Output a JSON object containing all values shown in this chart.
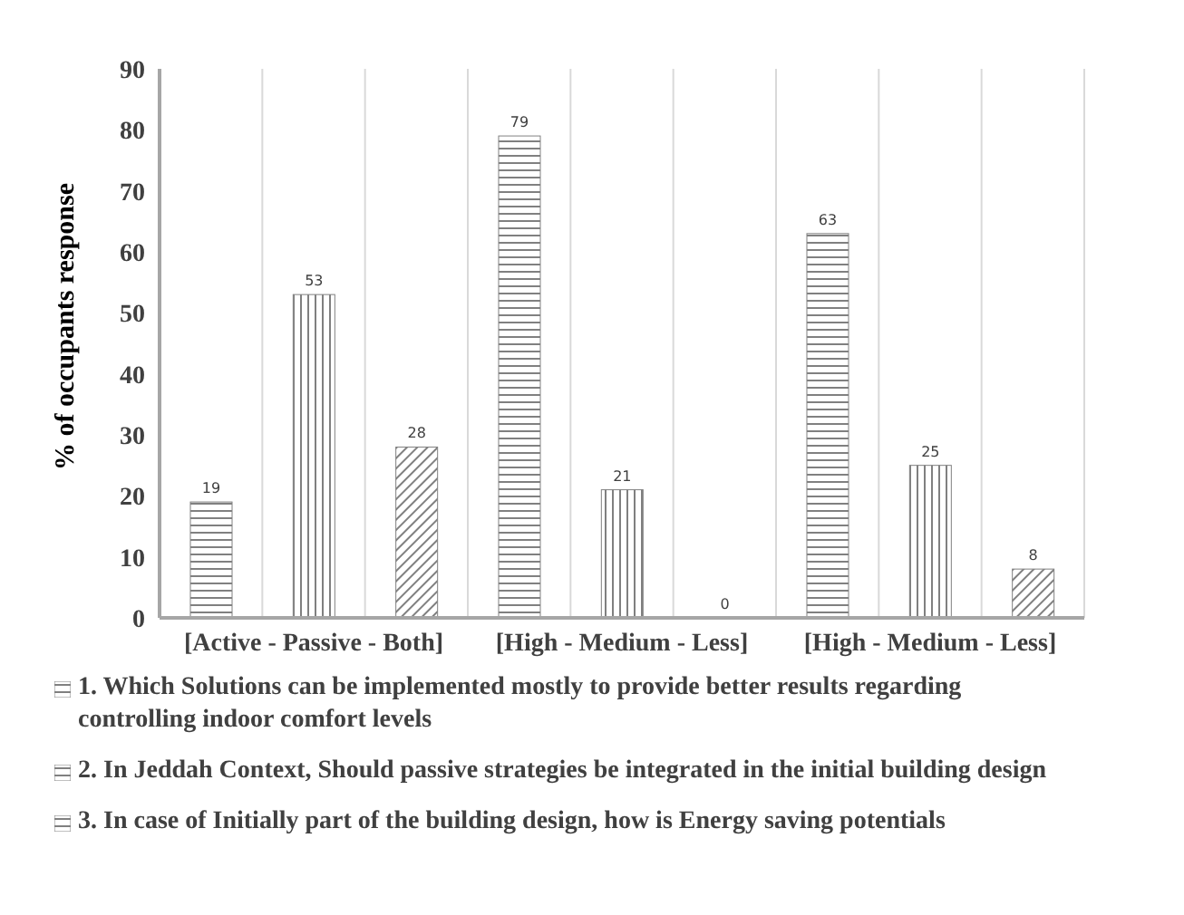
{
  "chart_data": {
    "type": "bar",
    "ylabel": "% of occupants response",
    "categories": [
      null,
      "[Active - Passive - Both]",
      null,
      null,
      "[High - Medium - Less]",
      null,
      null,
      "[High - Medium - Less]",
      null
    ],
    "series": [
      {
        "name": "1. Which Solutions can be implemented mostly to provide better results regarding controlling indoor comfort levels",
        "color": "#808080",
        "values": [
          19,
          53,
          28,
          null,
          null,
          null,
          null,
          null,
          null
        ]
      },
      {
        "name": "2. In Jeddah Context, Should passive strategies be integrated in the initial building design",
        "color": "#808080",
        "values": [
          null,
          null,
          null,
          79,
          21,
          0,
          null,
          null,
          null
        ]
      },
      {
        "name": "3. In case of Initially part of the building design, how is Energy saving potentials",
        "color": "#808080",
        "values": [
          null,
          null,
          null,
          null,
          null,
          null,
          63,
          25,
          8
        ]
      }
    ],
    "ylim": [
      0,
      90
    ],
    "yticks": [
      0,
      10,
      20,
      30,
      40,
      50,
      60,
      70,
      80,
      90
    ],
    "grid": "x",
    "legend": "bottom",
    "data_labels": true
  }
}
